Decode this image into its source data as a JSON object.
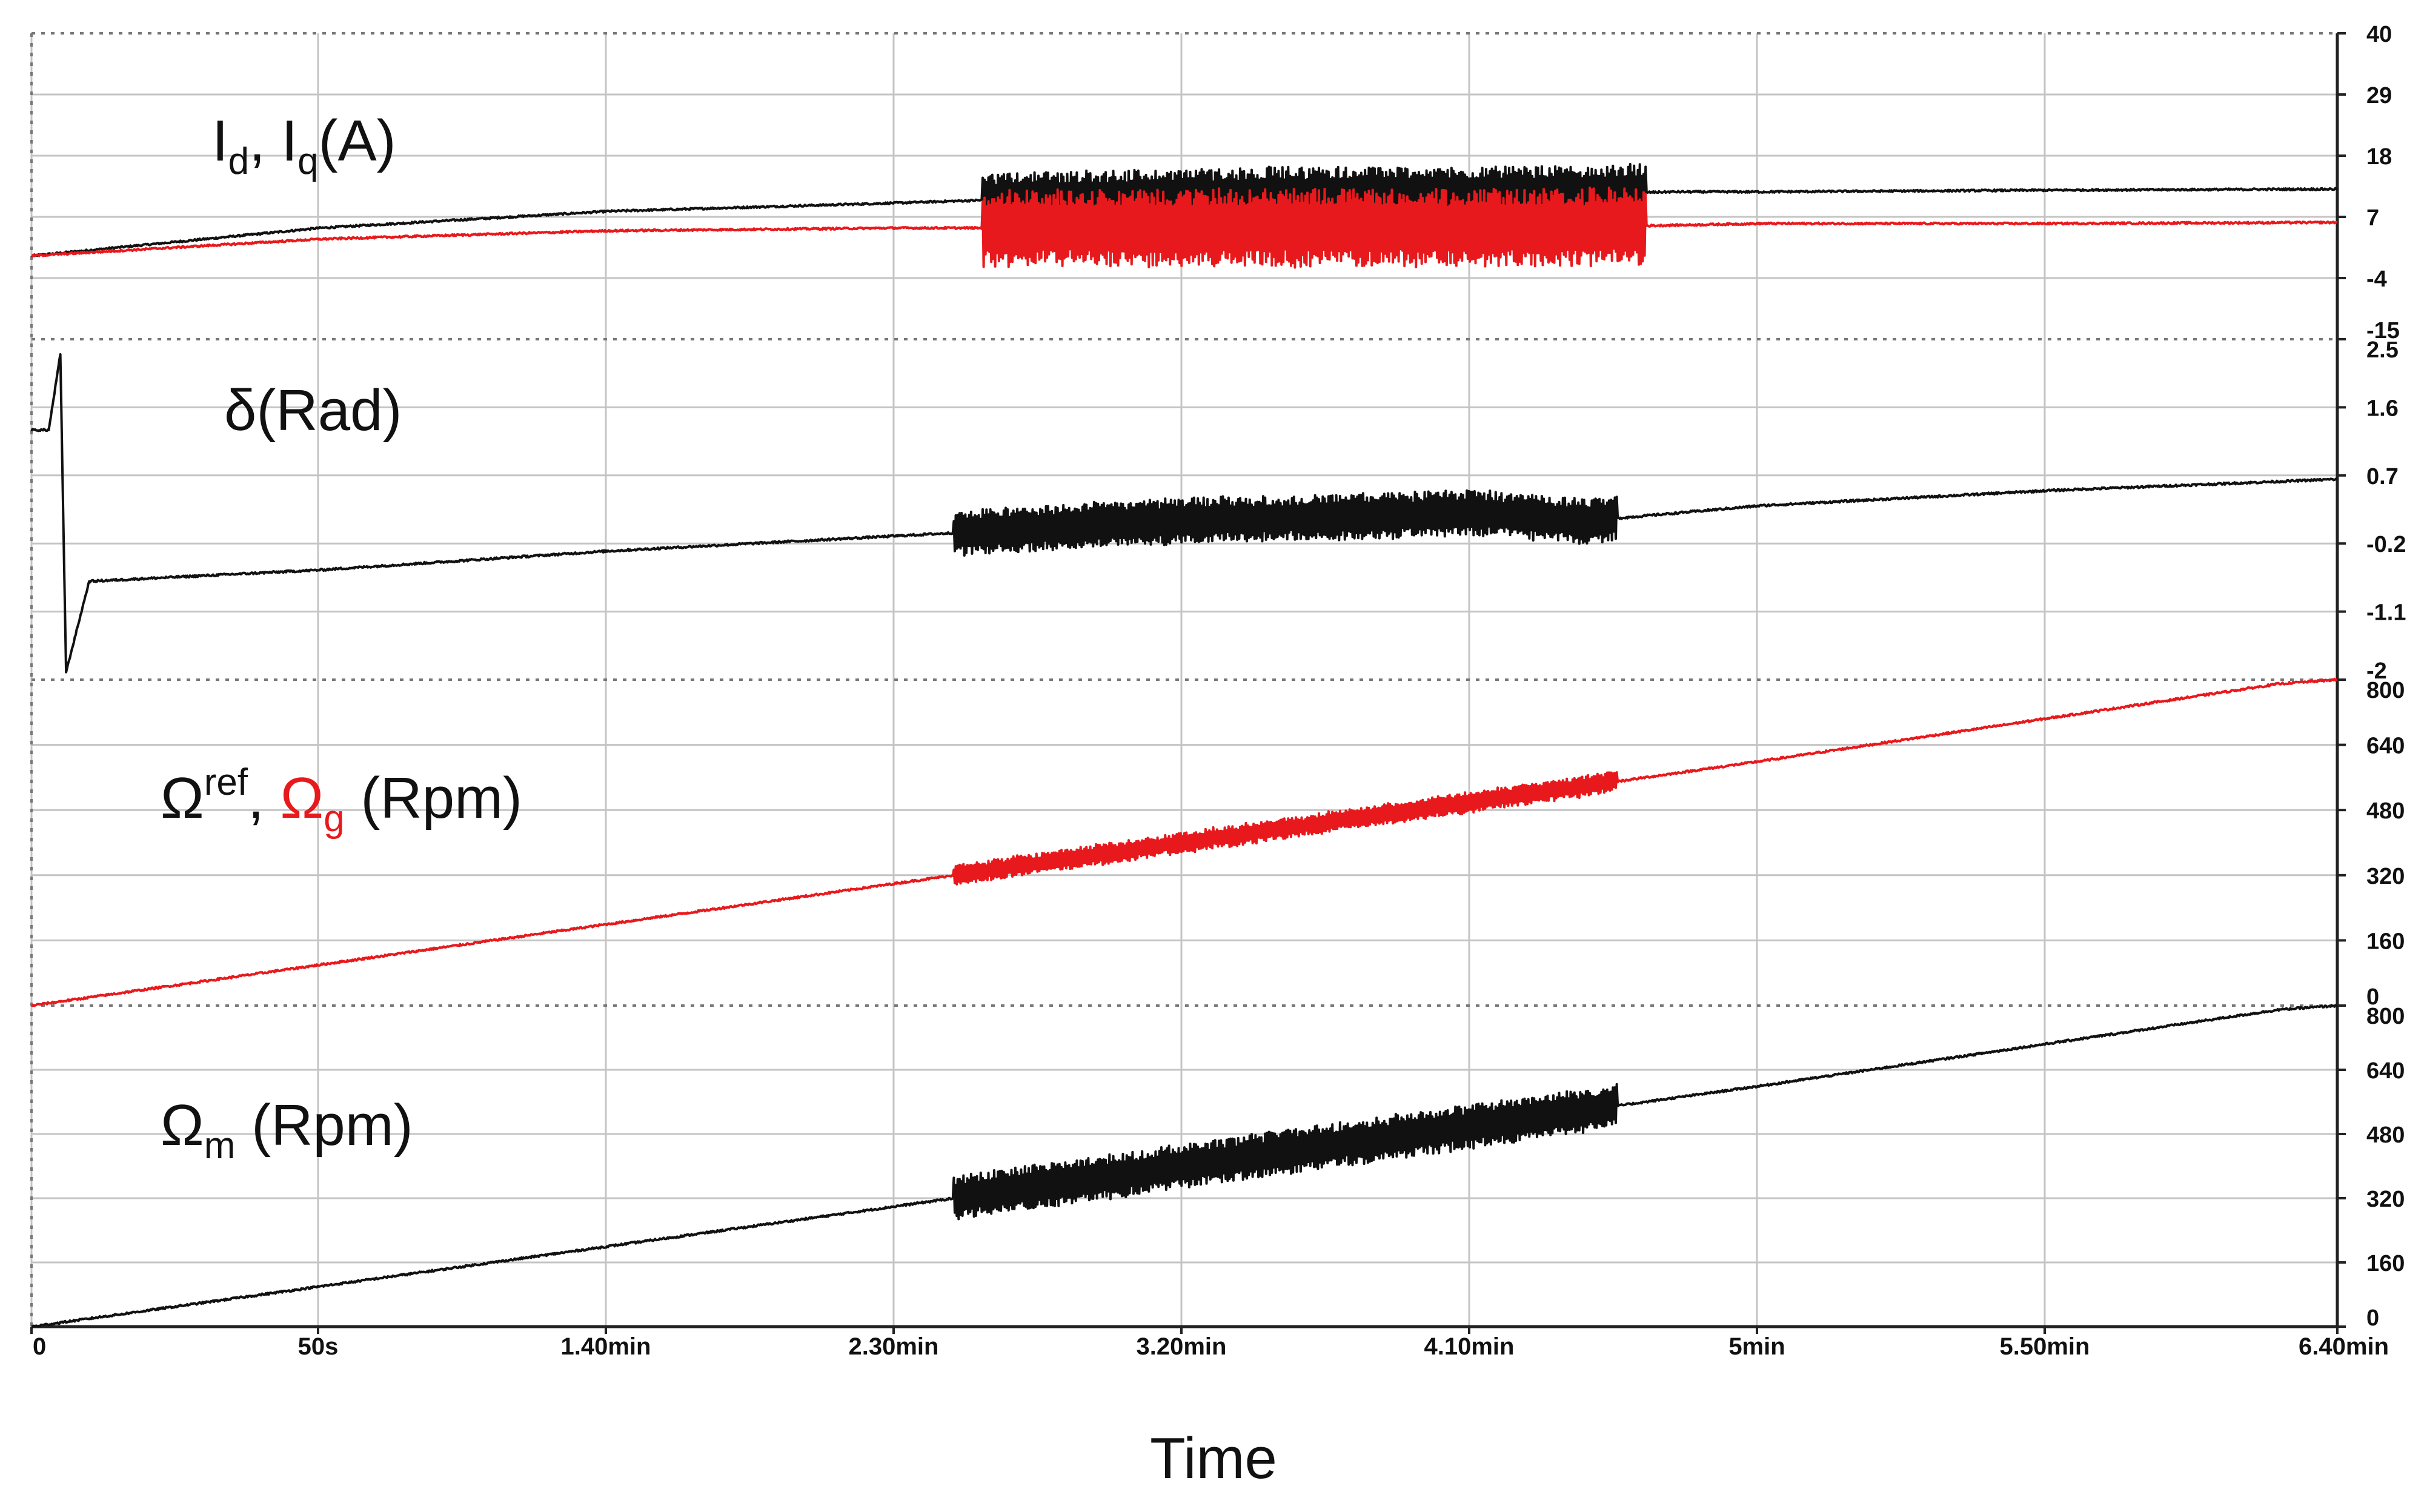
{
  "chart_data": {
    "type": "line",
    "xlabel": "Time",
    "x_ticks": [
      "0",
      "50s",
      "1.40min",
      "2.30min",
      "3.20min",
      "4.10min",
      "5min",
      "5.50min",
      "6.40min"
    ],
    "x_range_s": [
      0,
      400
    ],
    "colors": {
      "black": "#111111",
      "red": "#e8191c",
      "grid": "#c4c4c4"
    },
    "panels": [
      {
        "label_parts": [
          {
            "t": "I",
            "c": "black"
          },
          {
            "t": "d",
            "c": "black",
            "sub": true
          },
          {
            "t": ", I",
            "c": "black"
          },
          {
            "t": "q",
            "c": "black",
            "sub": true
          },
          {
            "t": "(A)",
            "c": "black"
          }
        ],
        "y_ticks": [
          "40",
          "29",
          "18",
          "7",
          "-4",
          "-15"
        ],
        "y_range": [
          -15,
          40
        ],
        "series": [
          {
            "name": "I_d",
            "color": "black",
            "x": [
              0,
              50,
              100,
              150,
              165,
              220,
              260,
              285,
              300,
              350,
              400
            ],
            "y": [
              0,
              5,
              8,
              9.5,
              10,
              11,
              11,
              11.5,
              11.5,
              11.8,
              12
            ],
            "osc_range": [
              165,
              280
            ],
            "osc_amp": 5
          },
          {
            "name": "I_q",
            "color": "red",
            "x": [
              0,
              50,
              100,
              150,
              165,
              220,
              260,
              285,
              300,
              350,
              400
            ],
            "y": [
              0,
              3,
              4.5,
              5,
              5,
              5,
              5,
              5.5,
              5.8,
              5.8,
              6
            ],
            "osc_range": [
              165,
              280
            ],
            "osc_amp": 7
          }
        ]
      },
      {
        "label_parts": [
          {
            "t": "δ(Rad)",
            "c": "black"
          }
        ],
        "y_ticks": [
          "2.5",
          "1.6",
          "0.7",
          "-0.2",
          "-1.1",
          "-2"
        ],
        "y_range": [
          -2,
          2.5
        ],
        "series": [
          {
            "name": "delta",
            "color": "black",
            "x": [
              0,
              3,
              5,
              6,
              10,
              50,
              100,
              150,
              200,
              250,
              270,
              300,
              350,
              400
            ],
            "y": [
              1.3,
              1.3,
              2.3,
              -1.9,
              -0.7,
              -0.55,
              -0.3,
              -0.1,
              0.1,
              0.2,
              0.1,
              0.3,
              0.5,
              0.65
            ],
            "osc_range": [
              160,
              275
            ],
            "osc_amp": 0.3
          }
        ]
      },
      {
        "label_parts": [
          {
            "t": "Ω",
            "c": "black"
          },
          {
            "t": "ref",
            "c": "black",
            "sup": true
          },
          {
            "t": ", ",
            "c": "black"
          },
          {
            "t": "Ω",
            "c": "red"
          },
          {
            "t": "g",
            "c": "red",
            "sub": true
          },
          {
            "t": " (Rpm)",
            "c": "black"
          }
        ],
        "y_ticks": [
          "800",
          "640",
          "480",
          "320",
          "160",
          "0"
        ],
        "y_range": [
          0,
          800
        ],
        "series": [
          {
            "name": "Omega_g",
            "color": "red",
            "x": [
              0,
              100,
              200,
              300,
              390,
              400
            ],
            "y": [
              0,
              200,
              400,
              600,
              790,
              800
            ],
            "osc_range": [
              160,
              275
            ],
            "osc_amp": 25
          }
        ]
      },
      {
        "label_parts": [
          {
            "t": "Ω",
            "c": "black"
          },
          {
            "t": "m",
            "c": "black",
            "sub": true
          },
          {
            "t": " (Rpm)",
            "c": "black"
          }
        ],
        "y_ticks": [
          "800",
          "640",
          "480",
          "320",
          "160",
          "0"
        ],
        "y_range": [
          0,
          800
        ],
        "series": [
          {
            "name": "Omega_m",
            "color": "black",
            "x": [
              0,
              100,
              200,
              300,
              390,
              400
            ],
            "y": [
              0,
              200,
              400,
              600,
              790,
              800
            ],
            "osc_range": [
              160,
              275
            ],
            "osc_amp": 55
          }
        ]
      }
    ]
  }
}
